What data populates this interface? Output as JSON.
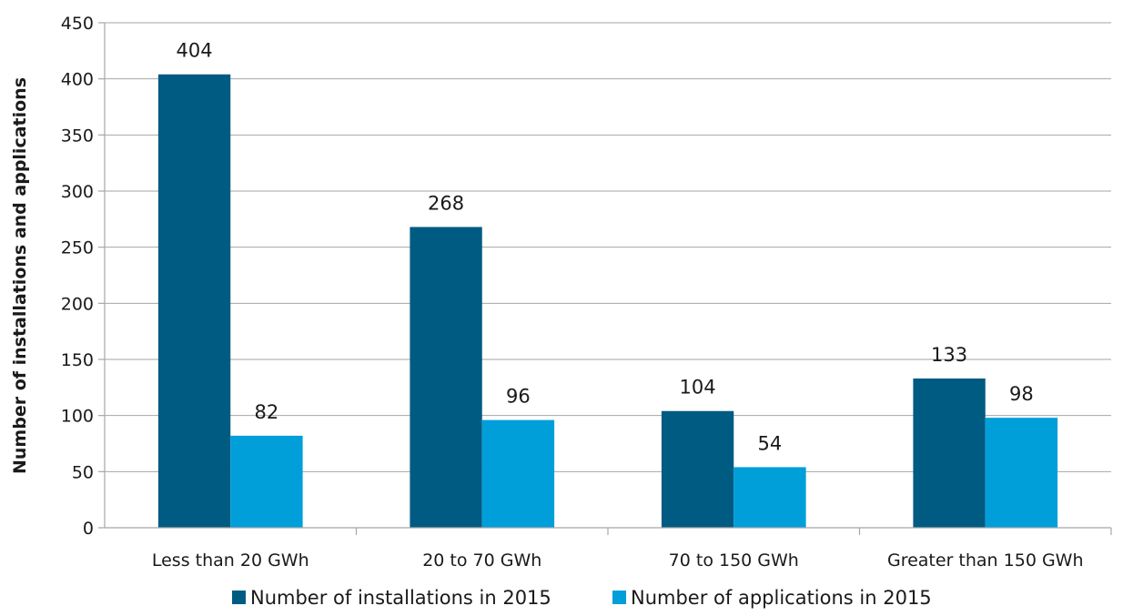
{
  "chart_data": {
    "type": "bar",
    "categories": [
      "Less than 20 GWh",
      "20 to 70 GWh",
      "70 to 150 GWh",
      "Greater than 150 GWh"
    ],
    "series": [
      {
        "name": "Number of installations in 2015",
        "values": [
          404,
          268,
          104,
          133
        ],
        "color": "#005b82"
      },
      {
        "name": "Number of applications in 2015",
        "values": [
          82,
          96,
          54,
          98
        ],
        "color": "#009fda"
      }
    ],
    "ylabel": "Number of installations and applications",
    "ylim": [
      0,
      450
    ],
    "yticks": [
      0,
      50,
      100,
      150,
      200,
      250,
      300,
      350,
      400,
      450
    ],
    "grid": true,
    "legend_position": "bottom"
  }
}
